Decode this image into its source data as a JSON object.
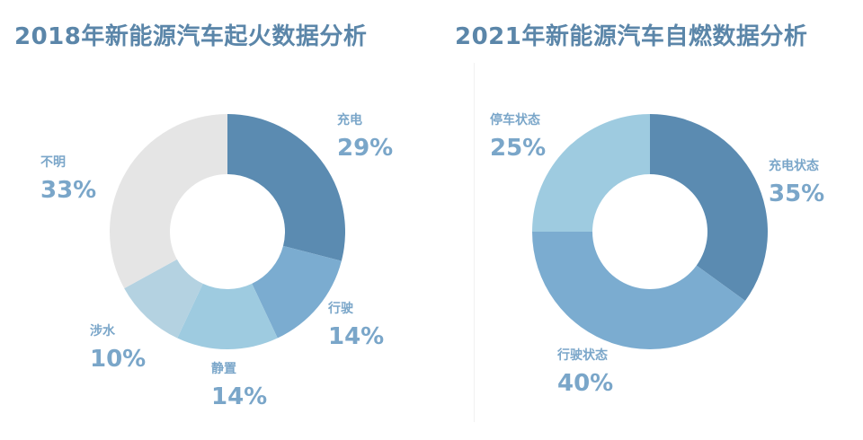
{
  "chart_data": [
    {
      "type": "pie",
      "variant": "donut",
      "title": "2018年新能源汽车起火数据分析",
      "start_angle_deg": 0,
      "direction": "clockwise",
      "unit": "%",
      "label_color": "#7aa6c9",
      "slices": [
        {
          "name": "充电",
          "value": 29,
          "label": "29%",
          "color": "#5b8bb1"
        },
        {
          "name": "行驶",
          "value": 14,
          "label": "14%",
          "color": "#7bacd0"
        },
        {
          "name": "静置",
          "value": 14,
          "label": "14%",
          "color": "#9ecbe0"
        },
        {
          "name": "涉水",
          "value": 10,
          "label": "10%",
          "color": "#b4d2e1"
        },
        {
          "name": "不明",
          "value": 33,
          "label": "33%",
          "color": "#e5e5e5"
        }
      ]
    },
    {
      "type": "pie",
      "variant": "donut",
      "title": "2021年新能源汽车自燃数据分析",
      "start_angle_deg": 0,
      "direction": "clockwise",
      "unit": "%",
      "label_color": "#7aa6c9",
      "slices": [
        {
          "name": "充电状态",
          "value": 35,
          "label": "35%",
          "color": "#5b8bb1"
        },
        {
          "name": "行驶状态",
          "value": 40,
          "label": "40%",
          "color": "#7bacd0"
        },
        {
          "name": "停车状态",
          "value": 25,
          "label": "25%",
          "color": "#9ecbe0"
        }
      ]
    }
  ]
}
